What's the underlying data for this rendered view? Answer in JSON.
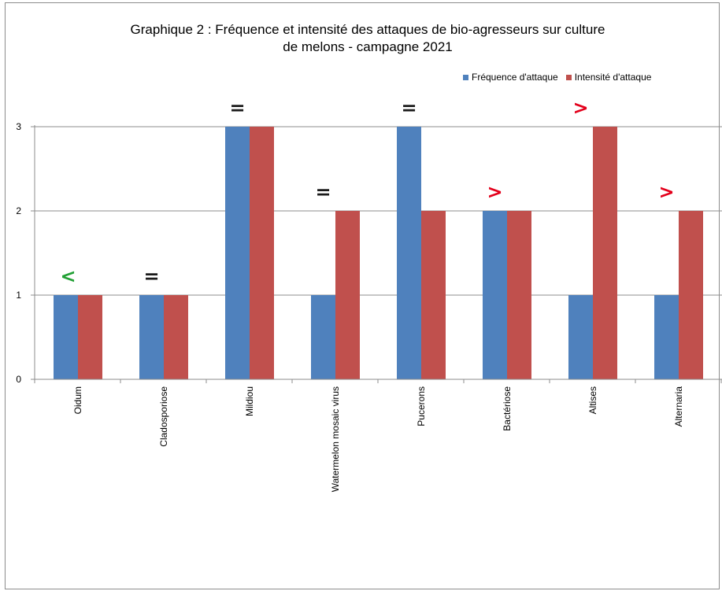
{
  "chart_data": {
    "type": "bar",
    "title_lines": [
      "Graphique 2 : Fréquence et intensité des attaques de bio-agresseurs sur culture",
      "de melons - campagne 2021"
    ],
    "categories": [
      "Oidum",
      "Cladosporiose",
      "Mildiou",
      "Watermelon mosaic virus",
      "Pucerons",
      "Bactériose",
      "Altises",
      "Alternaria"
    ],
    "series": [
      {
        "name": "Fréquence d'attaque",
        "color": "#4f81bd",
        "values": [
          1,
          1,
          3,
          1,
          3,
          2,
          1,
          1
        ]
      },
      {
        "name": "Intensité d'attaque",
        "color": "#c0504d",
        "values": [
          1,
          1,
          3,
          2,
          2,
          2,
          3,
          2
        ]
      }
    ],
    "annotations": [
      "<",
      "=",
      "=",
      "=",
      "=",
      ">",
      ">",
      ">"
    ],
    "annotation_colors": {
      "<": "#22a035",
      "=": "#1a1a1a",
      ">": "#e3001b"
    },
    "ylim": [
      0,
      3
    ],
    "yticks": [
      "0",
      "1",
      "2",
      "3"
    ],
    "grid": true,
    "legend_position": "top-right"
  }
}
